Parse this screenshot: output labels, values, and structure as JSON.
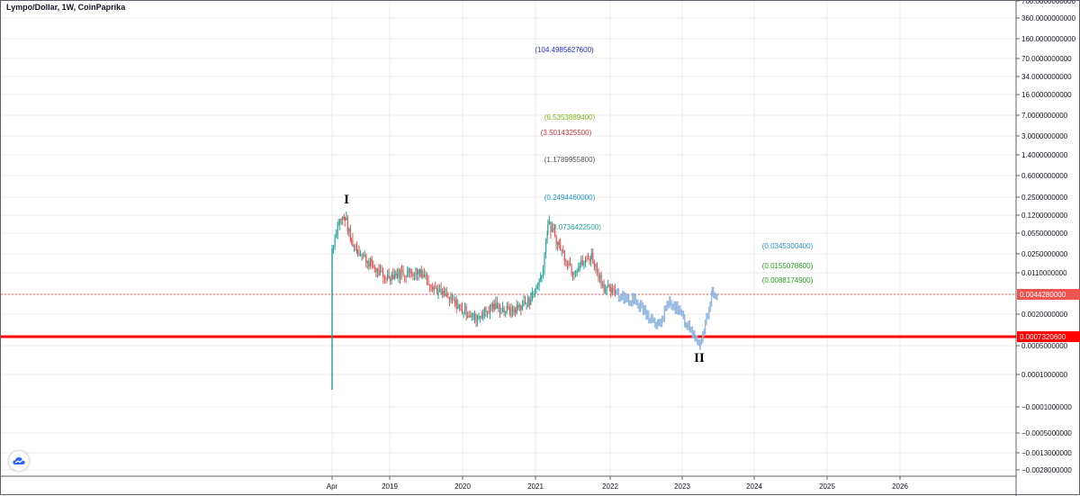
{
  "header": {
    "title": "Lympo/Dollar, 1W, CoinPaprika"
  },
  "chart_data": {
    "type": "candlestick",
    "title": "Lympo/Dollar, 1W, CoinPaprika",
    "y_scale": "log",
    "y_ticks": [
      "700.0000000000",
      "360.0000000000",
      "160.0000000000",
      "70.0000000000",
      "34.0000000000",
      "16.0000000000",
      "7.0000000000",
      "3.0000000000",
      "1.4000000000",
      "0.6000000000",
      "0.2500000000",
      "0.1200000000",
      "0.0550000000",
      "0.0250000000",
      "0.0110000000",
      "0.0044280000",
      "0.0020000000",
      "0.0007320600",
      "0.0005000000",
      "0.0001000000",
      "−0.0001000000",
      "−0.0005000000",
      "−0.0013000000",
      "−0.0028000000"
    ],
    "x_ticks": [
      "Apr",
      "2019",
      "2020",
      "2021",
      "2022",
      "2023",
      "2024",
      "2025",
      "2026"
    ],
    "candles_close_approx": [
      {
        "t": "2018-04",
        "v": 0.03
      },
      {
        "t": "2018-05",
        "v": 0.09
      },
      {
        "t": "2018-06",
        "v": 0.11
      },
      {
        "t": "2018-07",
        "v": 0.04
      },
      {
        "t": "2018-08",
        "v": 0.028
      },
      {
        "t": "2018-10",
        "v": 0.016
      },
      {
        "t": "2018-12",
        "v": 0.009
      },
      {
        "t": "2019-03",
        "v": 0.011
      },
      {
        "t": "2019-06",
        "v": 0.012
      },
      {
        "t": "2019-09",
        "v": 0.005
      },
      {
        "t": "2019-12",
        "v": 0.003
      },
      {
        "t": "2020-03",
        "v": 0.0017
      },
      {
        "t": "2020-06",
        "v": 0.0028
      },
      {
        "t": "2020-09",
        "v": 0.0022
      },
      {
        "t": "2020-12",
        "v": 0.0035
      },
      {
        "t": "2021-02",
        "v": 0.01
      },
      {
        "t": "2021-03",
        "v": 0.085
      },
      {
        "t": "2021-05",
        "v": 0.03
      },
      {
        "t": "2021-07",
        "v": 0.012
      },
      {
        "t": "2021-10",
        "v": 0.022
      },
      {
        "t": "2021-12",
        "v": 0.006
      },
      {
        "t": "2022-02",
        "v": 0.0045
      }
    ],
    "projection_path_approx": [
      {
        "t": "2022-02",
        "v": 0.0045
      },
      {
        "t": "2022-05",
        "v": 0.0035
      },
      {
        "t": "2022-07",
        "v": 0.002
      },
      {
        "t": "2022-09",
        "v": 0.0012
      },
      {
        "t": "2022-11",
        "v": 0.0035
      },
      {
        "t": "2023-01",
        "v": 0.0018
      },
      {
        "t": "2023-04",
        "v": 0.0006
      },
      {
        "t": "2023-06",
        "v": 0.0045
      },
      {
        "t": "2023-07",
        "v": 0.0032
      }
    ],
    "price_line": {
      "value": "0.0044280000",
      "color": "#ef5350"
    },
    "support_line": {
      "value": "0.0007320600",
      "color": "#ff0000"
    },
    "wave_labels": [
      {
        "text": "I",
        "t": "2018-05",
        "v": 0.25
      },
      {
        "text": "II",
        "t": "2023-04",
        "v": 0.0004
      }
    ],
    "annotations": [
      {
        "text": "(104.4985627600)",
        "color": "#2a2ad8"
      },
      {
        "text": "(6.5353889400)",
        "color": "#7cb518"
      },
      {
        "text": "(3.5014325500)",
        "color": "#d32f2f"
      },
      {
        "text": "(1.1789955800)",
        "color": "#555555"
      },
      {
        "text": "(0.2494460000)",
        "color": "#2196c8"
      },
      {
        "text": "0.0736422500)",
        "color": "#26a69a"
      },
      {
        "text": "(0.0345300400)",
        "color": "#2196c8"
      },
      {
        "text": "(0.0155078600)",
        "color": "#21a321"
      },
      {
        "text": "(0.0088174900)",
        "color": "#21a321"
      }
    ],
    "colors": {
      "up": "#26a69a",
      "down": "#ef5350",
      "projection": "#8fb5e0",
      "grid": "#ececec"
    }
  }
}
